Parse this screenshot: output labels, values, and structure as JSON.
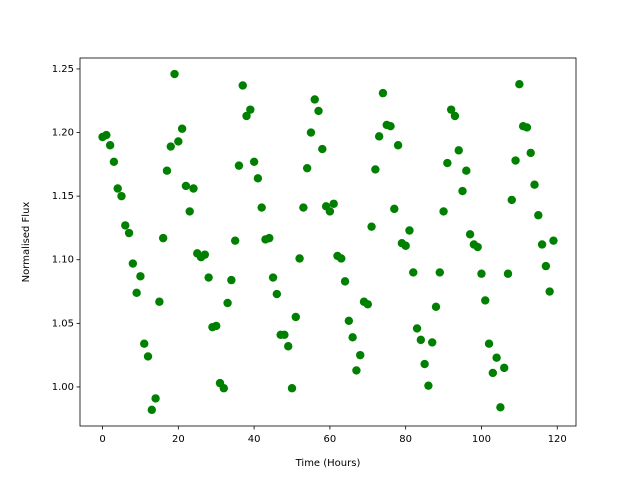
{
  "chart_data": {
    "type": "scatter",
    "xlabel": "Time (Hours)",
    "ylabel": "Normalised Flux",
    "series": [
      {
        "color": "#008000",
        "x": [
          0,
          1,
          2,
          3,
          4,
          5,
          6,
          7,
          8,
          9,
          10,
          11,
          12,
          13,
          14,
          15,
          16,
          17,
          18,
          19,
          20,
          21,
          22,
          23,
          24,
          25,
          26,
          27,
          28,
          29,
          30,
          31,
          32,
          33,
          34,
          35,
          36,
          37,
          38,
          39,
          40,
          41,
          42,
          43,
          44,
          45,
          46,
          47,
          48,
          49,
          50,
          51,
          52,
          53,
          54,
          55,
          56,
          57,
          58,
          59,
          60,
          61,
          62,
          63,
          64,
          65,
          66,
          67,
          68,
          69,
          70,
          71,
          72,
          73,
          74,
          75,
          76,
          77,
          78,
          79,
          80,
          81,
          82,
          83,
          84,
          85,
          86,
          87,
          88,
          89,
          90,
          91,
          92,
          93,
          94,
          95,
          96,
          97,
          98,
          99,
          100,
          101,
          102,
          103,
          104,
          105,
          106,
          107,
          108,
          109,
          110,
          111,
          112,
          113,
          114,
          115,
          116,
          117,
          118,
          119
        ],
        "values": [
          1.1965,
          1.198,
          1.19,
          1.177,
          1.156,
          1.15,
          1.127,
          1.121,
          1.097,
          1.074,
          1.087,
          1.034,
          1.024,
          0.982,
          0.991,
          1.067,
          1.117,
          1.17,
          1.189,
          1.246,
          1.193,
          1.203,
          1.158,
          1.138,
          1.156,
          1.105,
          1.102,
          1.104,
          1.086,
          1.047,
          1.048,
          1.003,
          0.999,
          1.066,
          1.084,
          1.115,
          1.174,
          1.237,
          1.213,
          1.218,
          1.177,
          1.164,
          1.141,
          1.116,
          1.117,
          1.086,
          1.073,
          1.041,
          1.041,
          1.032,
          0.999,
          1.055,
          1.101,
          1.141,
          1.172,
          1.2,
          1.226,
          1.217,
          1.187,
          1.142,
          1.138,
          1.144,
          1.103,
          1.101,
          1.083,
          1.052,
          1.039,
          1.013,
          1.025,
          1.067,
          1.065,
          1.126,
          1.171,
          1.197,
          1.231,
          1.206,
          1.205,
          1.14,
          1.19,
          1.113,
          1.111,
          1.123,
          1.09,
          1.046,
          1.037,
          1.018,
          1.001,
          1.035,
          1.063,
          1.09,
          1.138,
          1.176,
          1.218,
          1.213,
          1.186,
          1.154,
          1.17,
          1.12,
          1.112,
          1.11,
          1.089,
          1.068,
          1.034,
          1.011,
          1.023,
          0.984,
          1.015,
          1.089,
          1.147,
          1.178,
          1.238,
          1.205,
          1.204,
          1.184,
          1.159,
          1.135,
          1.112,
          1.095,
          1.075,
          1.115
        ]
      }
    ],
    "xlim": [
      -5.95,
      124.95
    ],
    "ylim": [
      0.9693,
      1.2586
    ],
    "xticks": [
      0,
      20,
      40,
      60,
      80,
      100,
      120
    ],
    "yticks": [
      {
        "value": 1.0,
        "label": "1.00"
      },
      {
        "value": 1.05,
        "label": "1.05"
      },
      {
        "value": 1.1,
        "label": "1.10"
      },
      {
        "value": 1.15,
        "label": "1.15"
      },
      {
        "value": 1.2,
        "label": "1.20"
      },
      {
        "value": 1.25,
        "label": "1.25"
      }
    ]
  }
}
